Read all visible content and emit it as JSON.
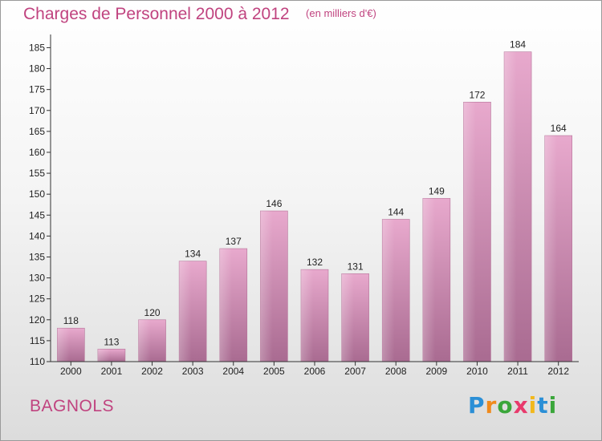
{
  "chart_data": {
    "type": "bar",
    "title": "Charges de Personnel 2000 à 2012",
    "subtitle": "(en milliers d'€)",
    "categories": [
      "2000",
      "2001",
      "2002",
      "2003",
      "2004",
      "2005",
      "2006",
      "2007",
      "2008",
      "2009",
      "2010",
      "2011",
      "2012"
    ],
    "values": [
      118,
      113,
      120,
      134,
      137,
      146,
      132,
      131,
      144,
      149,
      172,
      184,
      164
    ],
    "ylim": [
      110,
      187
    ],
    "yticks": [
      110,
      115,
      120,
      125,
      130,
      135,
      140,
      145,
      150,
      155,
      160,
      165,
      170,
      175,
      180,
      185
    ],
    "xlabel": "",
    "ylabel": "",
    "grid": false,
    "legend": "none",
    "bar_color": "#d88fb8"
  },
  "commune": "BAGNOLS",
  "logo": {
    "letters": [
      "P",
      "r",
      "o",
      "x",
      "i",
      "t",
      "i"
    ],
    "colors": [
      "#2b8fd6",
      "#f08a1c",
      "#3aa63a",
      "#e83a6c",
      "#f2b81c",
      "#2b8fd6",
      "#3aa63a"
    ]
  }
}
